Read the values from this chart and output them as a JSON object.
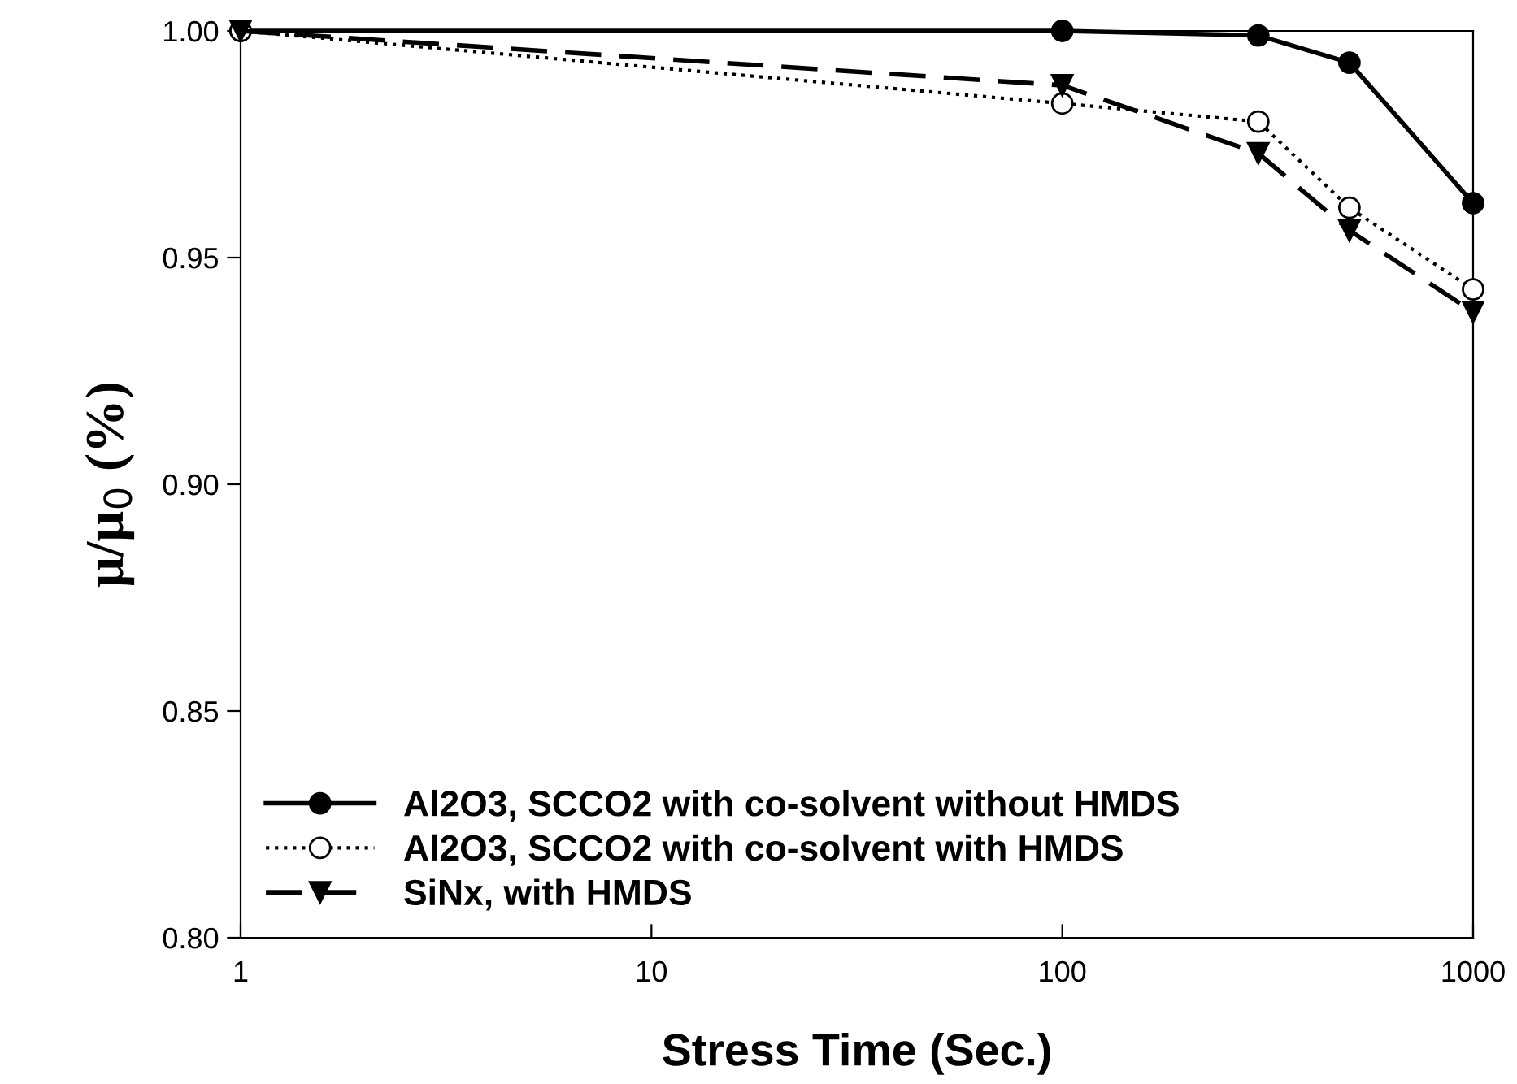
{
  "chart_data": {
    "type": "line",
    "xlabel": "Stress Time (Sec.)",
    "ylabel": "μ/μ$_{0}$ (%)",
    "log": "x",
    "x": [
      1,
      100,
      300,
      500,
      1000
    ],
    "series": [
      {
        "name": "Al2O3, SCCO2 with co-solvent without HMDS",
        "color": "#000000",
        "marker": "circle",
        "line_style": "solid",
        "values": [
          1.0,
          1.0,
          0.999,
          0.993,
          0.962
        ]
      },
      {
        "name": "Al2O3, SCCO2 with co-solvent with HMDS",
        "color": "#000000",
        "marker": "circle",
        "line_style": "dotted",
        "values": [
          1.0,
          0.984,
          0.98,
          0.961,
          0.943
        ]
      },
      {
        "name": "SiNx, with HMDS",
        "color": "#000000",
        "marker": "triangle",
        "line_style": "dashed",
        "values": [
          1.0,
          0.988,
          0.973,
          0.956,
          0.938
        ]
      }
    ],
    "xlim": [
      1,
      1000
    ],
    "xticks": [
      1,
      10,
      100,
      1000
    ],
    "ylim": [
      0.8,
      1.0
    ],
    "yticks": [
      {
        "value": 0.8,
        "label": "0.80"
      },
      {
        "value": 0.85,
        "label": "0.85"
      },
      {
        "value": 0.9,
        "label": "0.90"
      },
      {
        "value": 0.95,
        "label": "0.95"
      },
      {
        "value": 1.0,
        "label": "1.00"
      }
    ],
    "grid": false,
    "legend": "bottom left"
  }
}
